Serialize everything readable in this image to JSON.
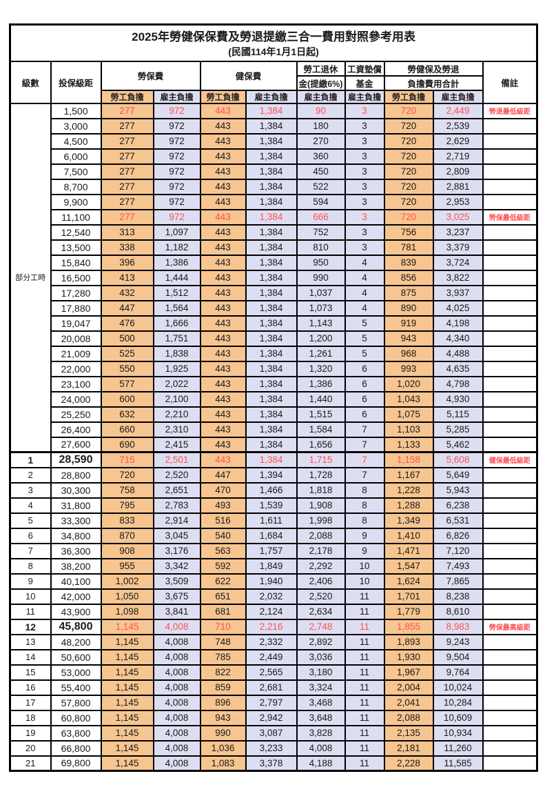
{
  "title": "2025年勞健保保費及勞退提繳三合一費用對照參考用表",
  "subtitle": "(民國114年1月1日起)",
  "colors": {
    "employee_fill": "#F6C590",
    "employer_fill": "#DEDEF2",
    "highlight_text": "#FF5050"
  },
  "table": {
    "columns": {
      "level": "級數",
      "bracket": "投保級距",
      "labor_insurance": "勞保費",
      "health_insurance": "健保費",
      "pension_top": "勞工退休",
      "pension_bottom": "金(提繳6%)",
      "wage_fund_top": "工資墊償",
      "wage_fund_bottom": "基金",
      "total_top": "勞健保及勞退",
      "total_bottom": "負擔費用合計",
      "note": "備註",
      "employee_share": "勞工負擔",
      "employer_share": "雇主負擔"
    },
    "part_time_label": "部分工時",
    "rows": [
      {
        "lvl": "",
        "b": "1,500",
        "v": [
          "277",
          "972",
          "443",
          "1,384",
          "90",
          "3",
          "720",
          "2,449"
        ],
        "note": "勞退最低級距",
        "hl": true
      },
      {
        "lvl": "",
        "b": "3,000",
        "v": [
          "277",
          "972",
          "443",
          "1,384",
          "180",
          "3",
          "720",
          "2,539"
        ],
        "note": ""
      },
      {
        "lvl": "",
        "b": "4,500",
        "v": [
          "277",
          "972",
          "443",
          "1,384",
          "270",
          "3",
          "720",
          "2,629"
        ],
        "note": ""
      },
      {
        "lvl": "",
        "b": "6,000",
        "v": [
          "277",
          "972",
          "443",
          "1,384",
          "360",
          "3",
          "720",
          "2,719"
        ],
        "note": ""
      },
      {
        "lvl": "",
        "b": "7,500",
        "v": [
          "277",
          "972",
          "443",
          "1,384",
          "450",
          "3",
          "720",
          "2,809"
        ],
        "note": ""
      },
      {
        "lvl": "",
        "b": "8,700",
        "v": [
          "277",
          "972",
          "443",
          "1,384",
          "522",
          "3",
          "720",
          "2,881"
        ],
        "note": ""
      },
      {
        "lvl": "",
        "b": "9,900",
        "v": [
          "277",
          "972",
          "443",
          "1,384",
          "594",
          "3",
          "720",
          "2,953"
        ],
        "note": ""
      },
      {
        "lvl": "",
        "b": "11,100",
        "v": [
          "277",
          "972",
          "443",
          "1,384",
          "666",
          "3",
          "720",
          "3,025"
        ],
        "note": "勞保最低級距",
        "hl": true
      },
      {
        "lvl": "",
        "b": "12,540",
        "v": [
          "313",
          "1,097",
          "443",
          "1,384",
          "752",
          "3",
          "756",
          "3,237"
        ],
        "note": ""
      },
      {
        "lvl": "",
        "b": "13,500",
        "v": [
          "338",
          "1,182",
          "443",
          "1,384",
          "810",
          "3",
          "781",
          "3,379"
        ],
        "note": ""
      },
      {
        "lvl": "",
        "b": "15,840",
        "v": [
          "396",
          "1,386",
          "443",
          "1,384",
          "950",
          "4",
          "839",
          "3,724"
        ],
        "note": ""
      },
      {
        "lvl": "",
        "b": "16,500",
        "v": [
          "413",
          "1,444",
          "443",
          "1,384",
          "990",
          "4",
          "856",
          "3,822"
        ],
        "note": ""
      },
      {
        "lvl": "",
        "b": "17,280",
        "v": [
          "432",
          "1,512",
          "443",
          "1,384",
          "1,037",
          "4",
          "875",
          "3,937"
        ],
        "note": ""
      },
      {
        "lvl": "",
        "b": "17,880",
        "v": [
          "447",
          "1,564",
          "443",
          "1,384",
          "1,073",
          "4",
          "890",
          "4,025"
        ],
        "note": ""
      },
      {
        "lvl": "",
        "b": "19,047",
        "v": [
          "476",
          "1,666",
          "443",
          "1,384",
          "1,143",
          "5",
          "919",
          "4,198"
        ],
        "note": ""
      },
      {
        "lvl": "",
        "b": "20,008",
        "v": [
          "500",
          "1,751",
          "443",
          "1,384",
          "1,200",
          "5",
          "943",
          "4,340"
        ],
        "note": ""
      },
      {
        "lvl": "",
        "b": "21,009",
        "v": [
          "525",
          "1,838",
          "443",
          "1,384",
          "1,261",
          "5",
          "968",
          "4,488"
        ],
        "note": ""
      },
      {
        "lvl": "",
        "b": "22,000",
        "v": [
          "550",
          "1,925",
          "443",
          "1,384",
          "1,320",
          "6",
          "993",
          "4,635"
        ],
        "note": ""
      },
      {
        "lvl": "",
        "b": "23,100",
        "v": [
          "577",
          "2,022",
          "443",
          "1,384",
          "1,386",
          "6",
          "1,020",
          "4,798"
        ],
        "note": ""
      },
      {
        "lvl": "",
        "b": "24,000",
        "v": [
          "600",
          "2,100",
          "443",
          "1,384",
          "1,440",
          "6",
          "1,043",
          "4,930"
        ],
        "note": ""
      },
      {
        "lvl": "",
        "b": "25,250",
        "v": [
          "632",
          "2,210",
          "443",
          "1,384",
          "1,515",
          "6",
          "1,075",
          "5,115"
        ],
        "note": ""
      },
      {
        "lvl": "",
        "b": "26,400",
        "v": [
          "660",
          "2,310",
          "443",
          "1,384",
          "1,584",
          "7",
          "1,103",
          "5,285"
        ],
        "note": ""
      },
      {
        "lvl": "",
        "b": "27,600",
        "v": [
          "690",
          "2,415",
          "443",
          "1,384",
          "1,656",
          "7",
          "1,133",
          "5,462"
        ],
        "note": ""
      },
      {
        "lvl": "1",
        "b": "28,590",
        "v": [
          "715",
          "2,501",
          "443",
          "1,384",
          "1,715",
          "7",
          "1,158",
          "5,608"
        ],
        "note": "健保最低級距",
        "hl": true,
        "em": true
      },
      {
        "lvl": "2",
        "b": "28,800",
        "v": [
          "720",
          "2,520",
          "447",
          "1,394",
          "1,728",
          "7",
          "1,167",
          "5,649"
        ],
        "note": ""
      },
      {
        "lvl": "3",
        "b": "30,300",
        "v": [
          "758",
          "2,651",
          "470",
          "1,466",
          "1,818",
          "8",
          "1,228",
          "5,943"
        ],
        "note": ""
      },
      {
        "lvl": "4",
        "b": "31,800",
        "v": [
          "795",
          "2,783",
          "493",
          "1,539",
          "1,908",
          "8",
          "1,288",
          "6,238"
        ],
        "note": ""
      },
      {
        "lvl": "5",
        "b": "33,300",
        "v": [
          "833",
          "2,914",
          "516",
          "1,611",
          "1,998",
          "8",
          "1,349",
          "6,531"
        ],
        "note": ""
      },
      {
        "lvl": "6",
        "b": "34,800",
        "v": [
          "870",
          "3,045",
          "540",
          "1,684",
          "2,088",
          "9",
          "1,410",
          "6,826"
        ],
        "note": ""
      },
      {
        "lvl": "7",
        "b": "36,300",
        "v": [
          "908",
          "3,176",
          "563",
          "1,757",
          "2,178",
          "9",
          "1,471",
          "7,120"
        ],
        "note": ""
      },
      {
        "lvl": "8",
        "b": "38,200",
        "v": [
          "955",
          "3,342",
          "592",
          "1,849",
          "2,292",
          "10",
          "1,547",
          "7,493"
        ],
        "note": ""
      },
      {
        "lvl": "9",
        "b": "40,100",
        "v": [
          "1,002",
          "3,509",
          "622",
          "1,940",
          "2,406",
          "10",
          "1,624",
          "7,865"
        ],
        "note": ""
      },
      {
        "lvl": "10",
        "b": "42,000",
        "v": [
          "1,050",
          "3,675",
          "651",
          "2,032",
          "2,520",
          "11",
          "1,701",
          "8,238"
        ],
        "note": ""
      },
      {
        "lvl": "11",
        "b": "43,900",
        "v": [
          "1,098",
          "3,841",
          "681",
          "2,124",
          "2,634",
          "11",
          "1,779",
          "8,610"
        ],
        "note": ""
      },
      {
        "lvl": "12",
        "b": "45,800",
        "v": [
          "1,145",
          "4,008",
          "710",
          "2,216",
          "2,748",
          "11",
          "1,855",
          "8,983"
        ],
        "note": "勞保最高級距",
        "hl": true,
        "em": true
      },
      {
        "lvl": "13",
        "b": "48,200",
        "v": [
          "1,145",
          "4,008",
          "748",
          "2,332",
          "2,892",
          "11",
          "1,893",
          "9,243"
        ],
        "note": ""
      },
      {
        "lvl": "14",
        "b": "50,600",
        "v": [
          "1,145",
          "4,008",
          "785",
          "2,449",
          "3,036",
          "11",
          "1,930",
          "9,504"
        ],
        "note": ""
      },
      {
        "lvl": "15",
        "b": "53,000",
        "v": [
          "1,145",
          "4,008",
          "822",
          "2,565",
          "3,180",
          "11",
          "1,967",
          "9,764"
        ],
        "note": ""
      },
      {
        "lvl": "16",
        "b": "55,400",
        "v": [
          "1,145",
          "4,008",
          "859",
          "2,681",
          "3,324",
          "11",
          "2,004",
          "10,024"
        ],
        "note": ""
      },
      {
        "lvl": "17",
        "b": "57,800",
        "v": [
          "1,145",
          "4,008",
          "896",
          "2,797",
          "3,468",
          "11",
          "2,041",
          "10,284"
        ],
        "note": ""
      },
      {
        "lvl": "18",
        "b": "60,800",
        "v": [
          "1,145",
          "4,008",
          "943",
          "2,942",
          "3,648",
          "11",
          "2,088",
          "10,609"
        ],
        "note": ""
      },
      {
        "lvl": "19",
        "b": "63,800",
        "v": [
          "1,145",
          "4,008",
          "990",
          "3,087",
          "3,828",
          "11",
          "2,135",
          "10,934"
        ],
        "note": ""
      },
      {
        "lvl": "20",
        "b": "66,800",
        "v": [
          "1,145",
          "4,008",
          "1,036",
          "3,233",
          "4,008",
          "11",
          "2,181",
          "11,260"
        ],
        "note": ""
      },
      {
        "lvl": "21",
        "b": "69,800",
        "v": [
          "1,145",
          "4,008",
          "1,083",
          "3,378",
          "4,188",
          "11",
          "2,228",
          "11,585"
        ],
        "note": ""
      }
    ]
  }
}
